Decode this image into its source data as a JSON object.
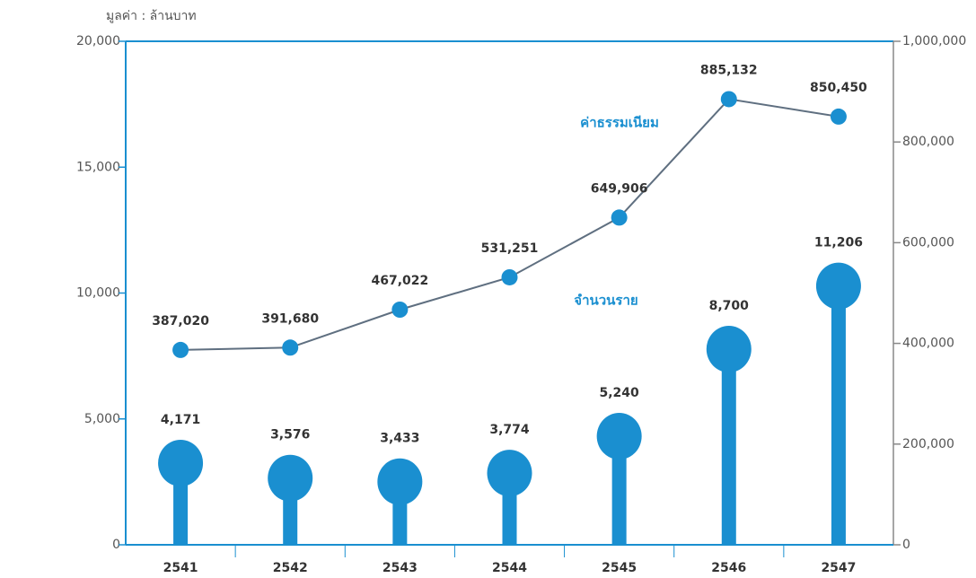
{
  "chart_data": {
    "type": "lollipop-line",
    "y_axis_title": "มูลค่า : ล้านบาท",
    "categories": [
      "2541",
      "2542",
      "2543",
      "2544",
      "2545",
      "2546",
      "2547"
    ],
    "series": [
      {
        "name": "จำนวนราย",
        "type": "lollipop",
        "axis": "y",
        "color": "#1a8fd0",
        "values": [
          4171,
          3576,
          3433,
          3774,
          5240,
          8700,
          11206
        ],
        "value_labels": [
          "4,171",
          "3,576",
          "3,433",
          "3,774",
          "5,240",
          "8,700",
          "11,206"
        ]
      },
      {
        "name": "ค่าธรรมเนียม",
        "type": "line",
        "axis": "y2",
        "color": "#5f6f80",
        "marker_color": "#1a8fd0",
        "values": [
          387020,
          391680,
          467022,
          531251,
          649906,
          885132,
          850450
        ],
        "value_labels": [
          "387,020",
          "391,680",
          "467,022",
          "531,251",
          "649,906",
          "885,132",
          "850,450"
        ]
      }
    ],
    "ylim": [
      0,
      20000
    ],
    "yticks": [
      0,
      {
        "value": 5000,
        "label": "5,000"
      },
      {
        "value": 10000,
        "label": "10,000"
      },
      {
        "value": 15000,
        "label": "15,000"
      },
      {
        "value": 20000,
        "label": "20,000"
      }
    ],
    "y2lim": [
      0,
      1000000
    ],
    "y2ticks": [
      0,
      {
        "value": 200000,
        "label": "200,000"
      },
      {
        "value": 400000,
        "label": "400,000"
      },
      {
        "value": 600000,
        "label": "600,000"
      },
      {
        "value": 800000,
        "label": "800,000"
      },
      {
        "value": 1000000,
        "label": "1,000,000"
      }
    ]
  }
}
